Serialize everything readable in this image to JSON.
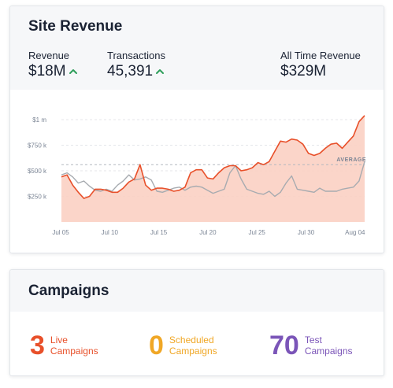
{
  "revenue_card": {
    "title": "Site Revenue",
    "stats": [
      {
        "label": "Revenue",
        "value": "$18M",
        "trend_icon": "chevron-up-icon"
      },
      {
        "label": "Transactions",
        "value": "45,391",
        "trend_icon": "chevron-up-icon"
      },
      {
        "label": "All Time Revenue",
        "value": "$329M"
      }
    ]
  },
  "colors": {
    "revenue_line": "#e8502a",
    "revenue_fill": "#fbd0c3",
    "average_line": "#a7abb0",
    "trend_up": "#2e9e5b",
    "live": "#e8502a",
    "scheduled": "#f0a726",
    "test": "#7b55b8"
  },
  "chart_data": {
    "type": "area",
    "y_tick_labels": [
      "$1 m",
      "$750 k",
      "$500 k",
      "$250 k"
    ],
    "x_tick_labels": [
      "Jul 05",
      "Jul 10",
      "Jul 15",
      "Jul 20",
      "Jul 25",
      "Jul 30",
      "Aug 04"
    ],
    "reference_line": {
      "label": "AVERAGE",
      "value": 560000
    },
    "ylim": [
      0,
      1000000
    ],
    "grid": "horizontal dashed",
    "series": [
      {
        "values": [
          440000,
          460000,
          360000,
          290000,
          230000,
          250000,
          320000,
          320000,
          310000,
          290000,
          290000,
          330000,
          390000,
          420000,
          560000,
          360000,
          310000,
          330000,
          330000,
          320000,
          300000,
          310000,
          340000,
          480000,
          510000,
          510000,
          430000,
          420000,
          480000,
          530000,
          550000,
          550000,
          500000,
          510000,
          530000,
          580000,
          560000,
          590000,
          690000,
          790000,
          780000,
          810000,
          800000,
          760000,
          670000,
          650000,
          670000,
          720000,
          760000,
          770000,
          720000,
          780000,
          840000,
          980000,
          1040000
        ]
      },
      {
        "values": [
          460000,
          480000,
          440000,
          380000,
          400000,
          350000,
          310000,
          300000,
          320000,
          300000,
          360000,
          400000,
          460000,
          410000,
          420000,
          440000,
          410000,
          300000,
          290000,
          310000,
          330000,
          340000,
          310000,
          340000,
          350000,
          340000,
          310000,
          280000,
          300000,
          320000,
          480000,
          550000,
          420000,
          320000,
          300000,
          280000,
          270000,
          300000,
          250000,
          290000,
          380000,
          450000,
          320000,
          310000,
          300000,
          290000,
          330000,
          300000,
          300000,
          300000,
          320000,
          330000,
          340000,
          400000,
          590000
        ]
      }
    ]
  },
  "campaigns_card": {
    "title": "Campaigns",
    "items": [
      {
        "count": "3",
        "line1": "Live",
        "line2": "Campaigns"
      },
      {
        "count": "0",
        "line1": "Scheduled",
        "line2": "Campaigns"
      },
      {
        "count": "70",
        "line1": "Test",
        "line2": "Campaigns"
      }
    ]
  }
}
